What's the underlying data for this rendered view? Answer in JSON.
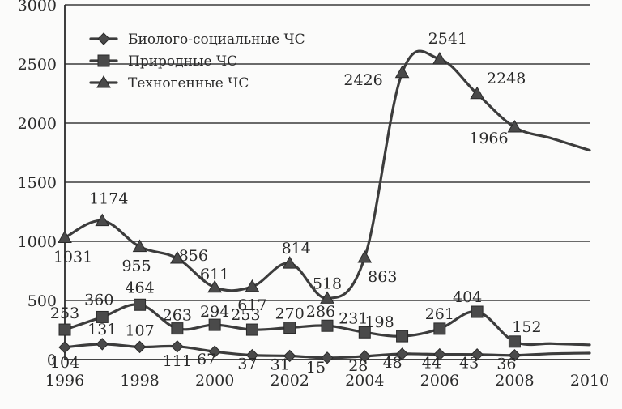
{
  "chart_data": {
    "type": "line",
    "x": [
      1996,
      1997,
      1998,
      1999,
      2000,
      2001,
      2002,
      2003,
      2004,
      2005,
      2006,
      2007,
      2008,
      2009,
      2010
    ],
    "xticks": [
      "1996",
      "1998",
      "2000",
      "2002",
      "2004",
      "2006",
      "2008",
      "2010"
    ],
    "yticks": [
      "0",
      "500",
      "1000",
      "1500",
      "2000",
      "2500",
      "3000"
    ],
    "ylim": [
      0,
      3000
    ],
    "xlim": [
      1996,
      2010
    ],
    "grid": "horizontal",
    "legend_position": "top-left",
    "series": [
      {
        "name": "Биолого-социальные ЧС",
        "marker": "diamond",
        "values": [
          104,
          131,
          107,
          111,
          67,
          37,
          31,
          15,
          28,
          48,
          44,
          43,
          36,
          50,
          55
        ],
        "labels": [
          "104",
          "131",
          "107",
          "111",
          "67",
          "37",
          "31",
          "15",
          "28",
          "48",
          "44",
          "43",
          "36",
          null,
          null
        ],
        "marked": [
          true,
          true,
          true,
          true,
          true,
          true,
          true,
          true,
          true,
          true,
          true,
          true,
          true,
          false,
          false
        ]
      },
      {
        "name": "Природные ЧС",
        "marker": "square",
        "values": [
          253,
          360,
          464,
          263,
          294,
          253,
          270,
          286,
          231,
          198,
          261,
          404,
          152,
          135,
          125
        ],
        "labels": [
          "253",
          "360",
          "464",
          "263",
          "294",
          "253",
          "270",
          "286",
          "231",
          "198",
          "261",
          "404",
          "152",
          null,
          null
        ],
        "marked": [
          true,
          true,
          true,
          true,
          true,
          true,
          true,
          true,
          true,
          true,
          true,
          true,
          true,
          false,
          false
        ]
      },
      {
        "name": "Техногенные ЧС",
        "marker": "triangle",
        "values": [
          1031,
          1174,
          955,
          856,
          611,
          617,
          814,
          518,
          863,
          2426,
          2541,
          2248,
          1966,
          1870,
          1770
        ],
        "labels": [
          "1031",
          "1174",
          "955",
          "856",
          "611",
          "617",
          "814",
          "518",
          "863",
          "2426",
          "2541",
          "2248",
          "1966",
          null,
          null
        ],
        "marked": [
          true,
          true,
          true,
          true,
          true,
          true,
          true,
          true,
          true,
          true,
          true,
          true,
          true,
          false,
          false
        ]
      }
    ]
  }
}
